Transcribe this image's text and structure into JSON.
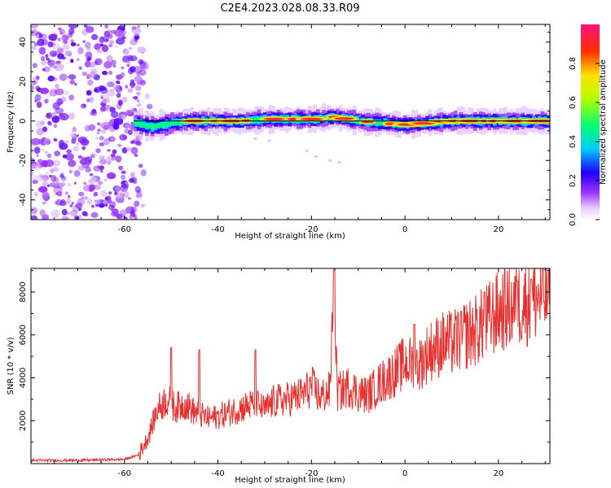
{
  "chart_data": [
    {
      "type": "heatmap",
      "title": "C2E4.2023.028.08.33.R09",
      "xlabel": "Height of straight line (km)",
      "ylabel": "Frequency (Hz)",
      "xlim": [
        -80,
        31
      ],
      "ylim": [
        -50,
        49
      ],
      "xticks": [
        -60,
        -40,
        -20,
        0,
        20
      ],
      "yticks": [
        40,
        20,
        0,
        -20,
        -40
      ],
      "reference_line_frequency_hz": 0,
      "noise_region_x_range": [
        -80,
        -56
      ],
      "signal_band": {
        "x_start": -58,
        "center_frequency_hz": [
          {
            "x": -58,
            "y": -1
          },
          {
            "x": -54,
            "y": -3
          },
          {
            "x": -50,
            "y": -1
          },
          {
            "x": -45,
            "y": 0
          },
          {
            "x": -35,
            "y": 0
          },
          {
            "x": -30,
            "y": 1
          },
          {
            "x": -20,
            "y": 1
          },
          {
            "x": -15,
            "y": 2
          },
          {
            "x": -10,
            "y": 0
          },
          {
            "x": -5,
            "y": -1
          },
          {
            "x": 0,
            "y": -2
          },
          {
            "x": 5,
            "y": -1
          },
          {
            "x": 10,
            "y": 0
          },
          {
            "x": 20,
            "y": 0
          },
          {
            "x": 31,
            "y": 0
          }
        ]
      },
      "colorbar": {
        "label": "Normalized spectral amplitude",
        "ticks": [
          "0.0",
          "0.2",
          "0.4",
          "0.6",
          "0.8"
        ],
        "range": [
          0,
          1
        ]
      }
    },
    {
      "type": "line",
      "xlabel": "Height of straight line (km)",
      "ylabel": "SNR (10 * v/v)",
      "xlim": [
        -80,
        31
      ],
      "ylim": [
        0,
        9100
      ],
      "xticks": [
        -60,
        -40,
        -20,
        0,
        20
      ],
      "yticks": [
        2000,
        4000,
        6000,
        8000
      ],
      "color": "#e8312f",
      "points": [
        {
          "x": -80,
          "y": 150
        },
        {
          "x": -70,
          "y": 150
        },
        {
          "x": -60,
          "y": 200
        },
        {
          "x": -57,
          "y": 400
        },
        {
          "x": -55,
          "y": 1200
        },
        {
          "x": -53,
          "y": 2500
        },
        {
          "x": -51,
          "y": 3000
        },
        {
          "x": -49,
          "y": 2600
        },
        {
          "x": -47,
          "y": 2800
        },
        {
          "x": -45,
          "y": 2400
        },
        {
          "x": -42,
          "y": 2100
        },
        {
          "x": -40,
          "y": 2200
        },
        {
          "x": -35,
          "y": 2600
        },
        {
          "x": -32,
          "y": 2800
        },
        {
          "x": -30,
          "y": 2500
        },
        {
          "x": -28,
          "y": 2900
        },
        {
          "x": -25,
          "y": 3000
        },
        {
          "x": -22,
          "y": 3200
        },
        {
          "x": -20,
          "y": 3600
        },
        {
          "x": -18,
          "y": 3100
        },
        {
          "x": -16,
          "y": 3400
        },
        {
          "x": -15.2,
          "y": 9100
        },
        {
          "x": -14.5,
          "y": 3300
        },
        {
          "x": -12,
          "y": 3600
        },
        {
          "x": -10,
          "y": 3300
        },
        {
          "x": -8,
          "y": 3200
        },
        {
          "x": -5,
          "y": 3800
        },
        {
          "x": -2,
          "y": 4300
        },
        {
          "x": 0,
          "y": 4700
        },
        {
          "x": 3,
          "y": 4600
        },
        {
          "x": 5,
          "y": 5200
        },
        {
          "x": 8,
          "y": 5600
        },
        {
          "x": 10,
          "y": 5600
        },
        {
          "x": 13,
          "y": 6000
        },
        {
          "x": 15,
          "y": 6200
        },
        {
          "x": 17,
          "y": 6500
        },
        {
          "x": 19,
          "y": 6900
        },
        {
          "x": 21,
          "y": 7200
        },
        {
          "x": 23,
          "y": 7300
        },
        {
          "x": 25,
          "y": 7500
        },
        {
          "x": 27,
          "y": 7600
        },
        {
          "x": 29,
          "y": 7800
        },
        {
          "x": 31,
          "y": 7900
        }
      ],
      "peaks": [
        {
          "x": -50,
          "y": 5400
        },
        {
          "x": -44,
          "y": 5300
        },
        {
          "x": -32,
          "y": 5300
        },
        {
          "x": -15.2,
          "y": 9100
        },
        {
          "x": 2,
          "y": 6500
        },
        {
          "x": 12,
          "y": 7100
        },
        {
          "x": 17,
          "y": 8000
        },
        {
          "x": 24,
          "y": 8500
        },
        {
          "x": 27,
          "y": 8600
        }
      ]
    }
  ]
}
